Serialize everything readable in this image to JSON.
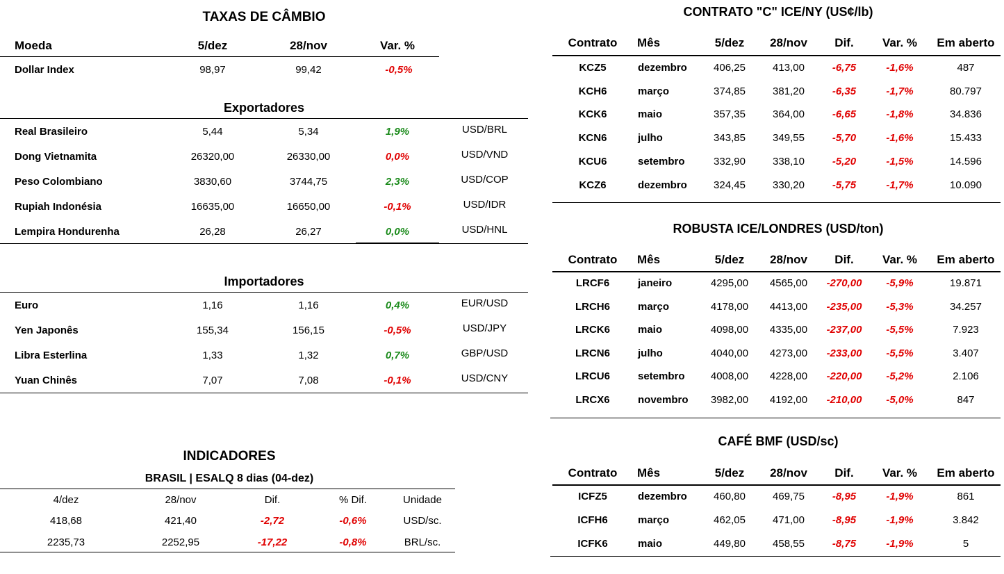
{
  "taxas": {
    "title": "TAXAS DE CÂMBIO",
    "headers": {
      "moeda": "Moeda",
      "d1": "5/dez",
      "d2": "28/nov",
      "var": "Var. %"
    },
    "dollar_index": {
      "name": "Dollar Index",
      "d1": "98,97",
      "d2": "99,42",
      "var": "-0,5%",
      "dir": "down"
    },
    "exportadores_title": "Exportadores",
    "exportadores": [
      {
        "name": "Real Brasileiro",
        "d1": "5,44",
        "d2": "5,34",
        "var": "1,9%",
        "dir": "up",
        "pair": "USD/BRL"
      },
      {
        "name": "Dong Vietnamita",
        "d1": "26320,00",
        "d2": "26330,00",
        "var": "0,0%",
        "dir": "down",
        "pair": "USD/VND"
      },
      {
        "name": "Peso Colombiano",
        "d1": "3830,60",
        "d2": "3744,75",
        "var": "2,3%",
        "dir": "up",
        "pair": "USD/COP"
      },
      {
        "name": "Rupiah Indonésia",
        "d1": "16635,00",
        "d2": "16650,00",
        "var": "-0,1%",
        "dir": "down",
        "pair": "USD/IDR"
      },
      {
        "name": "Lempira Hondurenha",
        "d1": "26,28",
        "d2": "26,27",
        "var": "0,0%",
        "dir": "up",
        "pair": "USD/HNL"
      }
    ],
    "importadores_title": "Importadores",
    "importadores": [
      {
        "name": "Euro",
        "d1": "1,16",
        "d2": "1,16",
        "var": "0,4%",
        "dir": "up",
        "pair": "EUR/USD"
      },
      {
        "name": "Yen Japonês",
        "d1": "155,34",
        "d2": "156,15",
        "var": "-0,5%",
        "dir": "down",
        "pair": "USD/JPY"
      },
      {
        "name": "Libra Esterlina",
        "d1": "1,33",
        "d2": "1,32",
        "var": "0,7%",
        "dir": "up",
        "pair": "GBP/USD"
      },
      {
        "name": "Yuan Chinês",
        "d1": "7,07",
        "d2": "7,08",
        "var": "-0,1%",
        "dir": "down",
        "pair": "USD/CNY"
      }
    ]
  },
  "indicadores": {
    "title": "INDICADORES",
    "subtitle": "BRASIL | ESALQ 8 dias (04-dez)",
    "headers": {
      "d1": "4/dez",
      "d2": "28/nov",
      "dif": "Dif.",
      "pdif": "% Dif.",
      "unidade": "Unidade"
    },
    "rows": [
      {
        "d1": "418,68",
        "d2": "421,40",
        "dif": "-2,72",
        "pdif": "-0,6%",
        "unidade": "USD/sc."
      },
      {
        "d1": "2235,73",
        "d2": "2252,95",
        "dif": "-17,22",
        "pdif": "-0,8%",
        "unidade": "BRL/sc."
      }
    ]
  },
  "ice_ny": {
    "title": "CONTRATO \"C\" ICE/NY (US¢/lb)",
    "headers": {
      "contrato": "Contrato",
      "mes": "Mês",
      "d1": "5/dez",
      "d2": "28/nov",
      "dif": "Dif.",
      "var": "Var. %",
      "aberto": "Em aberto"
    },
    "rows": [
      {
        "contrato": "KCZ5",
        "mes": "dezembro",
        "d1": "406,25",
        "d2": "413,00",
        "dif": "-6,75",
        "var": "-1,6%",
        "aberto": "487"
      },
      {
        "contrato": "KCH6",
        "mes": "março",
        "d1": "374,85",
        "d2": "381,20",
        "dif": "-6,35",
        "var": "-1,7%",
        "aberto": "80.797"
      },
      {
        "contrato": "KCK6",
        "mes": "maio",
        "d1": "357,35",
        "d2": "364,00",
        "dif": "-6,65",
        "var": "-1,8%",
        "aberto": "34.836"
      },
      {
        "contrato": "KCN6",
        "mes": "julho",
        "d1": "343,85",
        "d2": "349,55",
        "dif": "-5,70",
        "var": "-1,6%",
        "aberto": "15.433"
      },
      {
        "contrato": "KCU6",
        "mes": "setembro",
        "d1": "332,90",
        "d2": "338,10",
        "dif": "-5,20",
        "var": "-1,5%",
        "aberto": "14.596"
      },
      {
        "contrato": "KCZ6",
        "mes": "dezembro",
        "d1": "324,45",
        "d2": "330,20",
        "dif": "-5,75",
        "var": "-1,7%",
        "aberto": "10.090"
      }
    ]
  },
  "robusta": {
    "title": "ROBUSTA ICE/LONDRES (USD/ton)",
    "headers": {
      "contrato": "Contrato",
      "mes": "Mês",
      "d1": "5/dez",
      "d2": "28/nov",
      "dif": "Dif.",
      "var": "Var. %",
      "aberto": "Em aberto"
    },
    "rows": [
      {
        "contrato": "LRCF6",
        "mes": "janeiro",
        "d1": "4295,00",
        "d2": "4565,00",
        "dif": "-270,00",
        "var": "-5,9%",
        "aberto": "19.871"
      },
      {
        "contrato": "LRCH6",
        "mes": "março",
        "d1": "4178,00",
        "d2": "4413,00",
        "dif": "-235,00",
        "var": "-5,3%",
        "aberto": "34.257"
      },
      {
        "contrato": "LRCK6",
        "mes": "maio",
        "d1": "4098,00",
        "d2": "4335,00",
        "dif": "-237,00",
        "var": "-5,5%",
        "aberto": "7.923"
      },
      {
        "contrato": "LRCN6",
        "mes": "julho",
        "d1": "4040,00",
        "d2": "4273,00",
        "dif": "-233,00",
        "var": "-5,5%",
        "aberto": "3.407"
      },
      {
        "contrato": "LRCU6",
        "mes": "setembro",
        "d1": "4008,00",
        "d2": "4228,00",
        "dif": "-220,00",
        "var": "-5,2%",
        "aberto": "2.106"
      },
      {
        "contrato": "LRCX6",
        "mes": "novembro",
        "d1": "3982,00",
        "d2": "4192,00",
        "dif": "-210,00",
        "var": "-5,0%",
        "aberto": "847"
      }
    ]
  },
  "bmf": {
    "title": "CAFÉ BMF (USD/sc)",
    "headers": {
      "contrato": "Contrato",
      "mes": "Mês",
      "d1": "5/dez",
      "d2": "28/nov",
      "dif": "Dif.",
      "var": "Var. %",
      "aberto": "Em aberto"
    },
    "rows": [
      {
        "contrato": "ICFZ5",
        "mes": "dezembro",
        "d1": "460,80",
        "d2": "469,75",
        "dif": "-8,95",
        "var": "-1,9%",
        "aberto": "861"
      },
      {
        "contrato": "ICFH6",
        "mes": "março",
        "d1": "462,05",
        "d2": "471,00",
        "dif": "-8,95",
        "var": "-1,9%",
        "aberto": "3.842"
      },
      {
        "contrato": "ICFK6",
        "mes": "maio",
        "d1": "449,80",
        "d2": "458,55",
        "dif": "-8,75",
        "var": "-1,9%",
        "aberto": "5"
      }
    ]
  },
  "colors": {
    "negative": "#e00000",
    "positive": "#1a8a1a"
  }
}
